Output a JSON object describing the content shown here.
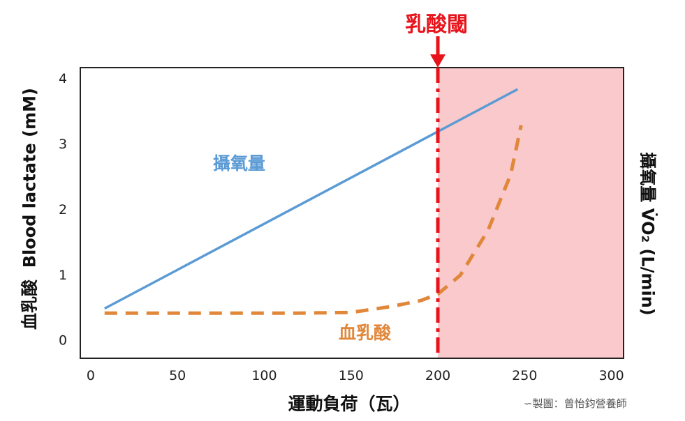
{
  "chart_data": {
    "type": "line",
    "title": "乳酸閾",
    "xlabel": "運動負荷（瓦）",
    "ylabel_left": "血乳酸  Blood lactate (mM)",
    "ylabel_right": "攝氧量 V̇O₂ (L/min)",
    "xlim": [
      -6,
      307
    ],
    "ylim": [
      -0.28,
      4.16
    ],
    "x_ticks": [
      "0",
      "50",
      "100",
      "150",
      "200",
      "250",
      "300"
    ],
    "y_ticks": [
      "0",
      "1",
      "2",
      "3",
      "4"
    ],
    "grid": false,
    "threshold": {
      "x": 200,
      "label": "乳酸閾",
      "color": "#e8141c",
      "shaded_color": "#f9c9cc"
    },
    "series": [
      {
        "name": "攝氧量",
        "color": "#5b9bd5",
        "style": "solid",
        "x": [
          8,
          246
        ],
        "y": [
          0.48,
          3.83
        ]
      },
      {
        "name": "血乳酸",
        "color": "#e0873a",
        "style": "dashed",
        "x": [
          8,
          60,
          120,
          150,
          173,
          190,
          200,
          213,
          229,
          242,
          248
        ],
        "y": [
          0.41,
          0.41,
          0.41,
          0.42,
          0.51,
          0.6,
          0.7,
          0.99,
          1.68,
          2.53,
          3.28
        ]
      }
    ]
  },
  "credit": "製圖：曾怡鈞營養師"
}
